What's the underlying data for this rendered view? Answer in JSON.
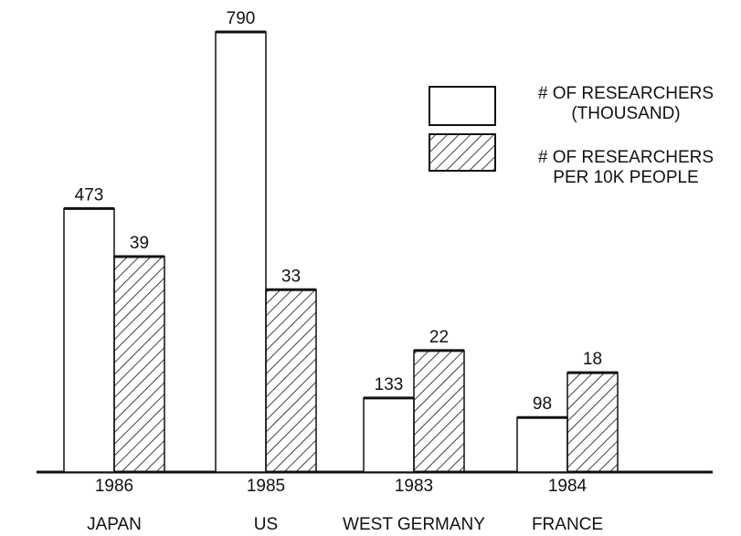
{
  "chart_data": {
    "type": "bar",
    "categories": [
      "JAPAN",
      "US",
      "WEST GERMANY",
      "FRANCE"
    ],
    "years": [
      "1986",
      "1985",
      "1983",
      "1984"
    ],
    "series": [
      {
        "name": "# OF RESEARCHERS\n(THOUSAND)",
        "color": "#ffffff",
        "values": [
          473,
          790,
          133,
          98
        ]
      },
      {
        "name": "# OF RESEARCHERS\nPER 10K PEOPLE",
        "color": "hatched",
        "values": [
          39,
          33,
          22,
          18
        ]
      }
    ]
  }
}
